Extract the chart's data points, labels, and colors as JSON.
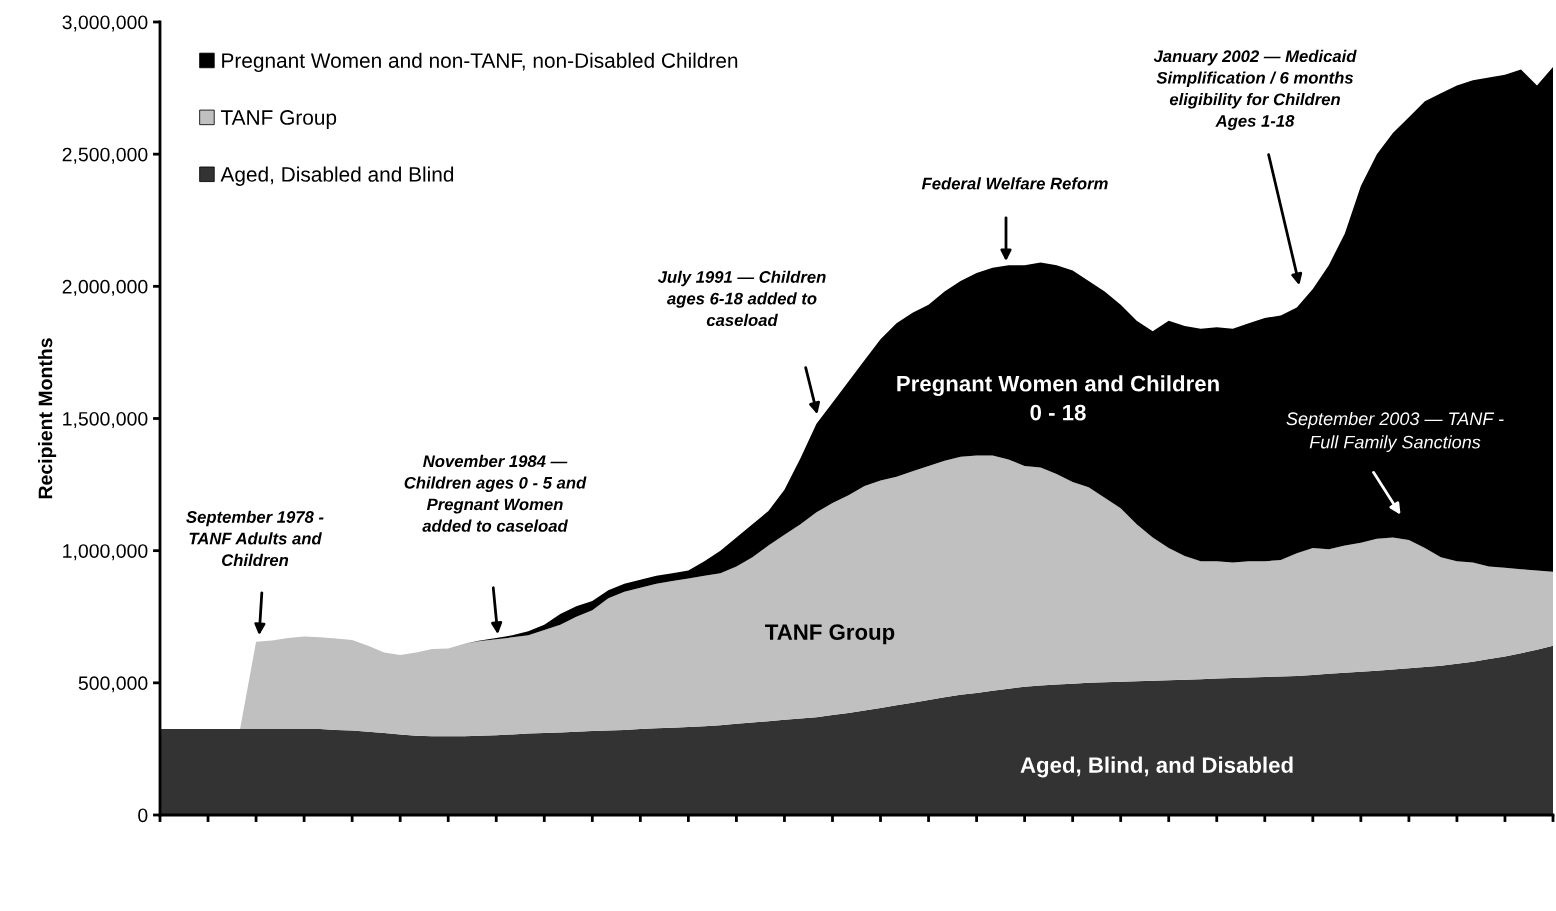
{
  "chart_data": {
    "type": "area",
    "stacked": true,
    "ylabel": "Recipient Months",
    "categories": [
      null,
      null,
      null,
      null,
      null,
      null,
      null,
      null,
      null,
      null,
      null,
      null,
      null,
      null,
      null,
      null,
      null,
      null,
      null,
      null,
      null,
      null,
      null,
      null,
      null,
      null,
      null,
      null,
      null,
      null,
      null,
      null,
      null,
      null,
      null,
      null,
      null,
      null,
      null,
      null,
      null,
      null,
      null,
      null,
      null,
      null,
      null,
      null,
      null,
      null,
      null,
      null,
      null,
      null,
      null,
      null,
      null,
      null,
      null,
      null,
      null,
      null,
      null,
      null,
      null,
      null,
      null,
      null,
      null,
      null,
      null,
      null,
      null,
      null,
      null,
      null,
      null,
      null,
      null,
      null,
      null,
      null,
      null,
      null,
      null,
      null,
      null,
      null
    ],
    "series": [
      {
        "name": "Aged, Disabled and Blind",
        "color": "#333333",
        "values": [
          325000,
          325000,
          325000,
          325000,
          325000,
          325000,
          325000,
          325000,
          325000,
          325000,
          325000,
          322000,
          320000,
          315000,
          310000,
          305000,
          300000,
          298000,
          298000,
          298000,
          300000,
          302000,
          305000,
          308000,
          310000,
          312000,
          315000,
          318000,
          320000,
          322000,
          325000,
          328000,
          330000,
          333000,
          336000,
          340000,
          345000,
          350000,
          355000,
          360000,
          365000,
          370000,
          378000,
          386000,
          395000,
          405000,
          415000,
          425000,
          435000,
          445000,
          455000,
          462000,
          470000,
          478000,
          485000,
          490000,
          494000,
          497000,
          500000,
          502000,
          504000,
          506000,
          508000,
          510000,
          512000,
          514000,
          516000,
          518000,
          520000,
          522000,
          524000,
          526000,
          530000,
          534000,
          538000,
          542000,
          546000,
          550000,
          555000,
          560000,
          565000,
          572000,
          580000,
          590000,
          600000,
          612000,
          625000,
          640000
        ]
      },
      {
        "name": "TANF Group",
        "color": "#c0c0c0",
        "values": [
          0,
          0,
          0,
          0,
          0,
          0,
          330000,
          335000,
          345000,
          350000,
          347000,
          346000,
          342000,
          325000,
          305000,
          300000,
          315000,
          330000,
          332000,
          350000,
          358000,
          363000,
          367000,
          372000,
          390000,
          408000,
          435000,
          457000,
          500000,
          523000,
          535000,
          547000,
          555000,
          562000,
          569000,
          575000,
          595000,
          625000,
          665000,
          700000,
          735000,
          775000,
          802000,
          824000,
          850000,
          860000,
          865000,
          875000,
          885000,
          895000,
          900000,
          898000,
          890000,
          867000,
          835000,
          825000,
          796000,
          763000,
          740000,
          698000,
          656000,
          594000,
          542000,
          500000,
          468000,
          446000,
          444000,
          437000,
          440000,
          438000,
          441000,
          464000,
          480000,
          471000,
          482000,
          488000,
          499000,
          500000,
          485000,
          450000,
          410000,
          388000,
          375000,
          350000,
          335000,
          318000,
          300000,
          280000
        ]
      },
      {
        "name": "Pregnant Women and non-TANF, non-Disabled Children",
        "color": "#000000",
        "values": [
          0,
          0,
          0,
          0,
          0,
          0,
          0,
          0,
          0,
          0,
          0,
          0,
          0,
          0,
          0,
          0,
          0,
          0,
          0,
          0,
          2000,
          5000,
          8000,
          15000,
          20000,
          40000,
          40000,
          35000,
          30000,
          30000,
          30000,
          30000,
          30000,
          30000,
          55000,
          85000,
          110000,
          125000,
          130000,
          170000,
          250000,
          335000,
          380000,
          430000,
          475000,
          535000,
          580000,
          600000,
          610000,
          640000,
          665000,
          690000,
          710000,
          735000,
          760000,
          775000,
          790000,
          800000,
          780000,
          780000,
          770000,
          770000,
          780000,
          860000,
          870000,
          880000,
          885000,
          885000,
          900000,
          920000,
          925000,
          930000,
          980000,
          1075000,
          1180000,
          1350000,
          1455000,
          1530000,
          1600000,
          1690000,
          1755000,
          1800000,
          1825000,
          1850000,
          1865000,
          1890000,
          1835000,
          1910000
        ]
      }
    ],
    "ylim": [
      0,
      3000000
    ],
    "yticks": [
      {
        "value": 0,
        "label": "0"
      },
      {
        "value": 500000,
        "label": "500,000"
      },
      {
        "value": 1000000,
        "label": "1,000,000"
      },
      {
        "value": 1500000,
        "label": "1,500,000"
      },
      {
        "value": 2000000,
        "label": "2,000,000"
      },
      {
        "value": 2500000,
        "label": "2,500,000"
      },
      {
        "value": 3000000,
        "label": "3,000,000"
      }
    ],
    "legend": "top left",
    "annotations": [
      "September 1978 -\nTANF Adults and\nChildren",
      "November 1984 —\nChildren ages 0 - 5 and\nPregnant Women\nadded to caseload",
      "July 1991 — Children\nages 6-18 added to\ncaseload",
      "Federal Welfare Reform",
      "January 2002 — Medicaid\nSimplification / 6 months\neligibility for Children\nAges 1-18",
      "September 2003 — TANF -\nFull Family Sanctions",
      "Pregnant Women and Children\n0 - 18",
      "TANF Group",
      "Aged, Blind, and Disabled"
    ]
  }
}
